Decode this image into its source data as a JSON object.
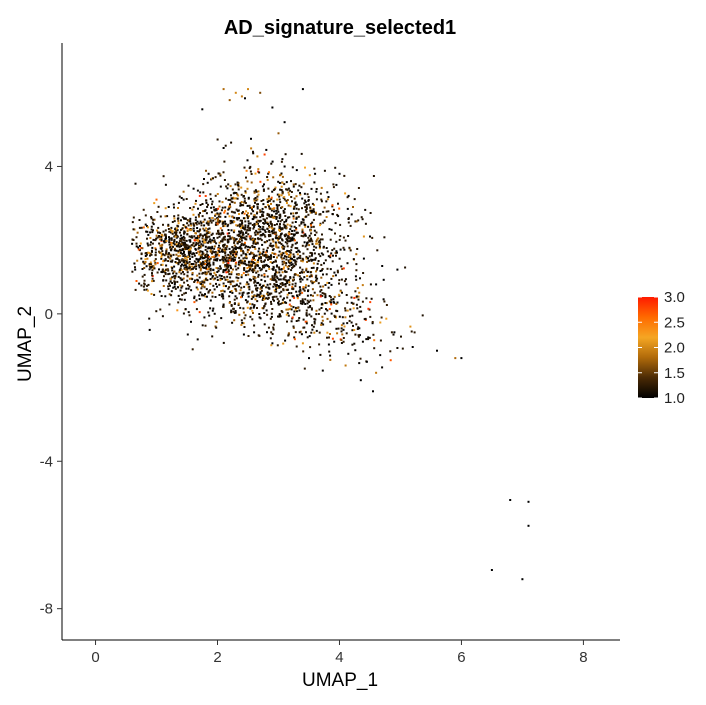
{
  "chart_data": {
    "type": "scatter",
    "title": "AD_signature_selected1",
    "xlabel": "UMAP_1",
    "ylabel": "UMAP_2",
    "xlim": [
      -0.55,
      8.6
    ],
    "ylim": [
      -8.85,
      7.35
    ],
    "x_ticks": [
      0,
      2,
      4,
      6,
      8
    ],
    "y_ticks": [
      4,
      0,
      -4,
      -8
    ],
    "x_tick_labels": [
      "0",
      "2",
      "4",
      "6",
      "8"
    ],
    "y_tick_labels": [
      "4",
      "0",
      "-4",
      "-8"
    ],
    "grid": false,
    "color_scale": {
      "name": "",
      "min": 1.0,
      "max": 3.0,
      "ticks": [
        3.0,
        2.5,
        2.0,
        1.5,
        1.0
      ],
      "tick_labels": [
        "3.0",
        "2.5",
        "2.0",
        "1.5",
        "1.0"
      ],
      "colors": [
        "#000000",
        "#4a2a05",
        "#b06a0a",
        "#f5a623",
        "#ff6a00",
        "#ff1a00"
      ],
      "legend_position": "right"
    },
    "points": [
      [
        2.3,
        6.0,
        2.0
      ],
      [
        2.5,
        6.1,
        2.0
      ],
      [
        2.1,
        6.1,
        1.8
      ],
      [
        2.4,
        5.9,
        1.9
      ],
      [
        2.2,
        5.8,
        1.7
      ],
      [
        2.7,
        6.0,
        1.6
      ],
      [
        1.75,
        5.55,
        1.0
      ],
      [
        2.45,
        5.85,
        1.0
      ],
      [
        2.9,
        5.6,
        1.0
      ],
      [
        3.4,
        6.1,
        1.0
      ],
      [
        3.1,
        5.2,
        1.0
      ],
      [
        3.0,
        4.9,
        1.7
      ],
      [
        2.55,
        4.75,
        1.0
      ],
      [
        2.1,
        4.5,
        1.0
      ],
      [
        2.8,
        4.45,
        1.0
      ],
      [
        1.0,
        3.1,
        2.6
      ],
      [
        1.2,
        2.9,
        1.0
      ],
      [
        2.0,
        2.45,
        2.7
      ],
      [
        4.7,
        1.3,
        1.0
      ],
      [
        4.95,
        1.2,
        1.0
      ],
      [
        4.6,
        0.8,
        1.0
      ],
      [
        4.2,
        0.3,
        1.0
      ],
      [
        4.9,
        -0.5,
        1.0
      ],
      [
        5.2,
        -0.9,
        1.0
      ],
      [
        5.6,
        -1.0,
        1.0
      ],
      [
        5.9,
        -1.2,
        1.8
      ],
      [
        6.0,
        -1.2,
        1.0
      ],
      [
        4.45,
        -1.3,
        1.0
      ],
      [
        4.6,
        -1.6,
        1.9
      ],
      [
        4.35,
        -1.8,
        1.0
      ],
      [
        4.55,
        -2.1,
        1.0
      ],
      [
        3.85,
        -1.25,
        1.8
      ],
      [
        4.1,
        -1.4,
        1.9
      ],
      [
        3.5,
        -1.2,
        1.0
      ],
      [
        6.8,
        -5.05,
        1.0
      ],
      [
        7.1,
        -5.1,
        1.0
      ],
      [
        7.1,
        -5.75,
        1.0
      ],
      [
        6.5,
        -6.95,
        1.0
      ],
      [
        7.0,
        -7.2,
        1.0
      ],
      [
        3.1,
        4.0,
        1.0
      ],
      [
        3.3,
        3.9,
        1.0
      ],
      [
        3.6,
        3.8,
        1.0
      ],
      [
        4.0,
        3.8,
        1.0
      ],
      [
        3.95,
        3.5,
        1.0
      ],
      [
        4.15,
        3.2,
        1.0
      ],
      [
        3.8,
        3.3,
        1.0
      ],
      [
        3.55,
        2.8,
        1.0
      ],
      [
        4.2,
        2.7,
        1.0
      ],
      [
        4.5,
        2.1,
        1.0
      ],
      [
        4.4,
        1.5,
        1.0
      ],
      [
        3.95,
        1.7,
        1.0
      ],
      [
        4.3,
        0.7,
        1.9
      ],
      [
        3.9,
        0.4,
        1.0
      ],
      [
        3.7,
        -0.3,
        1.8
      ],
      [
        3.4,
        -0.8,
        2.1
      ],
      [
        2.9,
        -0.8,
        1.0
      ],
      [
        2.6,
        -0.5,
        1.0
      ],
      [
        0.6,
        1.9,
        1.0
      ],
      [
        0.7,
        1.8,
        1.0
      ],
      [
        0.75,
        1.5,
        1.0
      ],
      [
        0.65,
        1.2,
        1.0
      ],
      [
        1.3,
        0.8,
        1.0
      ],
      [
        1.7,
        0.5,
        1.0
      ],
      [
        2.2,
        0.3,
        1.8
      ],
      [
        2.6,
        0.2,
        1.0
      ]
    ],
    "clusters": [
      {
        "cx": 1.35,
        "cy": 1.7,
        "sx": 0.45,
        "sy": 0.55,
        "count": 700,
        "rot": 0.0
      },
      {
        "cx": 2.3,
        "cy": 2.0,
        "sx": 0.65,
        "sy": 0.9,
        "count": 1100,
        "rot": -0.25
      },
      {
        "cx": 2.9,
        "cy": 1.2,
        "sx": 0.6,
        "sy": 0.75,
        "count": 700,
        "rot": -0.4
      },
      {
        "cx": 3.5,
        "cy": 0.2,
        "sx": 0.55,
        "sy": 0.5,
        "count": 260,
        "rot": -0.4
      },
      {
        "cx": 3.2,
        "cy": 2.7,
        "sx": 0.55,
        "sy": 0.6,
        "count": 280,
        "rot": 0.0
      },
      {
        "cx": 4.4,
        "cy": -0.6,
        "sx": 0.45,
        "sy": 0.35,
        "count": 60,
        "rot": -0.2
      }
    ]
  }
}
